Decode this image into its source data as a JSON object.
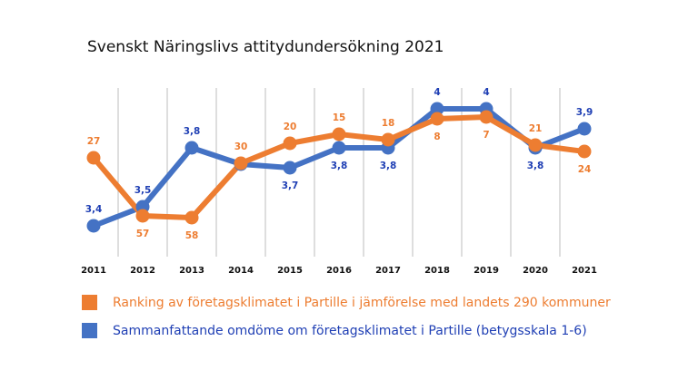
{
  "chart_data": {
    "type": "line",
    "title": "Svenskt Näringslivs attitydundersökning 2021",
    "xlabel": "",
    "ylabel": "",
    "grid": "vertical",
    "x": [
      "2011",
      "2012",
      "2013",
      "2014",
      "2015",
      "2016",
      "2017",
      "2018",
      "2019",
      "2020",
      "2021"
    ],
    "series": [
      {
        "name": "Ranking av företagsklimatet i Partille i jämförelse med landets 290 kommuner",
        "color": "#ED7D31",
        "values": [
          27,
          57,
          58,
          30,
          20,
          15,
          18,
          8,
          7,
          21,
          24
        ],
        "labels": [
          "27",
          "57",
          "58",
          "30",
          "20",
          "15",
          "18",
          "8",
          "7",
          "21",
          "24"
        ],
        "axis": "rank (reversed)"
      },
      {
        "name": "Sammanfattande omdöme om företagsklimatet i Partille (betygsskala 1-6)",
        "color": "#4472C4",
        "values": [
          3.4,
          3.5,
          3.8,
          3.75,
          3.7,
          3.8,
          3.8,
          4,
          4,
          3.8,
          3.9
        ],
        "labels": [
          "3,4",
          "3,5",
          "3,8",
          "",
          "3,7",
          "3,8",
          "3,8",
          "4",
          "4",
          "3,8",
          "3,9"
        ],
        "axis": "score"
      }
    ],
    "legend_position": "bottom"
  },
  "legend": {
    "items": [
      {
        "label": "Ranking av företagsklimatet i Partille i jämförelse med landets 290 kommuner",
        "color": "#ED7D31",
        "text_color": "#ED7D31"
      },
      {
        "label": "Sammanfattande omdöme om företagsklimatet i Partille (betygsskala 1-6)",
        "color": "#4472C4",
        "text_color": "#1F3FB4"
      }
    ]
  }
}
